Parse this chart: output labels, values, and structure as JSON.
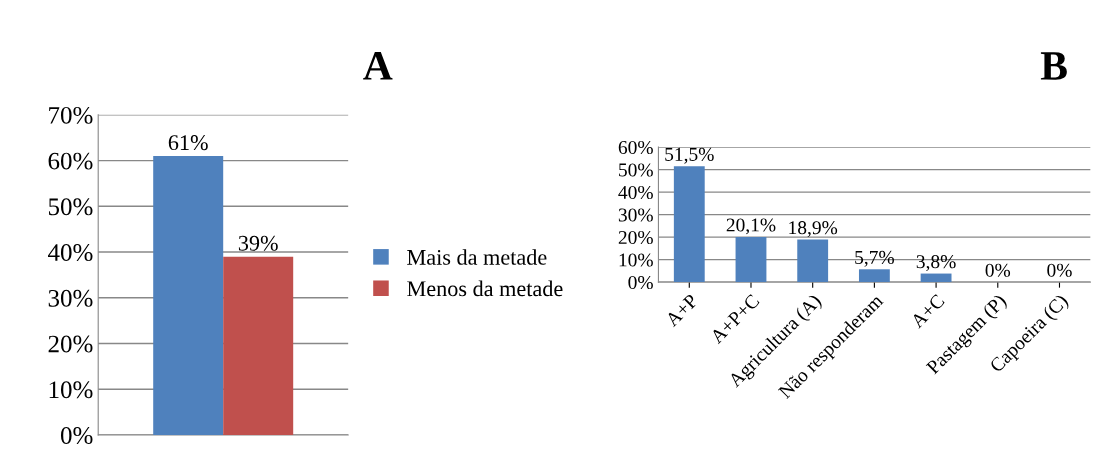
{
  "chart_data": [
    {
      "type": "bar",
      "title": "A",
      "categories": [
        null
      ],
      "series": [
        {
          "name": "Mais da metade",
          "color": "#4f81bd",
          "values": [
            61
          ],
          "value_labels": [
            "61%"
          ]
        },
        {
          "name": "Menos da metade",
          "color": "#c0504d",
          "values": [
            39
          ],
          "value_labels": [
            "39%"
          ]
        }
      ],
      "ylim": [
        0,
        70
      ],
      "yticks": [
        {
          "value": 0,
          "label": "0%"
        },
        {
          "value": 10,
          "label": "10%"
        },
        {
          "value": 20,
          "label": "20%"
        },
        {
          "value": 30,
          "label": "30%"
        },
        {
          "value": 40,
          "label": "40%"
        },
        {
          "value": 50,
          "label": "50%"
        },
        {
          "value": 60,
          "label": "60%"
        },
        {
          "value": 70,
          "label": "70%"
        }
      ],
      "grid": "y",
      "legend": "right"
    },
    {
      "type": "bar",
      "title": "B",
      "categories": [
        "A+P",
        "A+P+C",
        "Agricultura (A)",
        "Não responderam",
        "A+C",
        "Pastagem (P)",
        "Capoeira (C)"
      ],
      "series": [
        {
          "color": "#4f81bd",
          "values": [
            51.5,
            20.1,
            18.9,
            5.7,
            3.8,
            0,
            0
          ],
          "value_labels": [
            "51,5%",
            "20,1%",
            "18,9%",
            "5,7%",
            "3,8%",
            "0%",
            "0%"
          ]
        }
      ],
      "ylim": [
        0,
        60
      ],
      "yticks": [
        {
          "value": 0,
          "label": "0%"
        },
        {
          "value": 10,
          "label": "10%"
        },
        {
          "value": 20,
          "label": "20%"
        },
        {
          "value": 30,
          "label": "30%"
        },
        {
          "value": 40,
          "label": "40%"
        },
        {
          "value": 50,
          "label": "50%"
        },
        {
          "value": 60,
          "label": "60%"
        }
      ],
      "grid": "y",
      "legend": false
    }
  ]
}
